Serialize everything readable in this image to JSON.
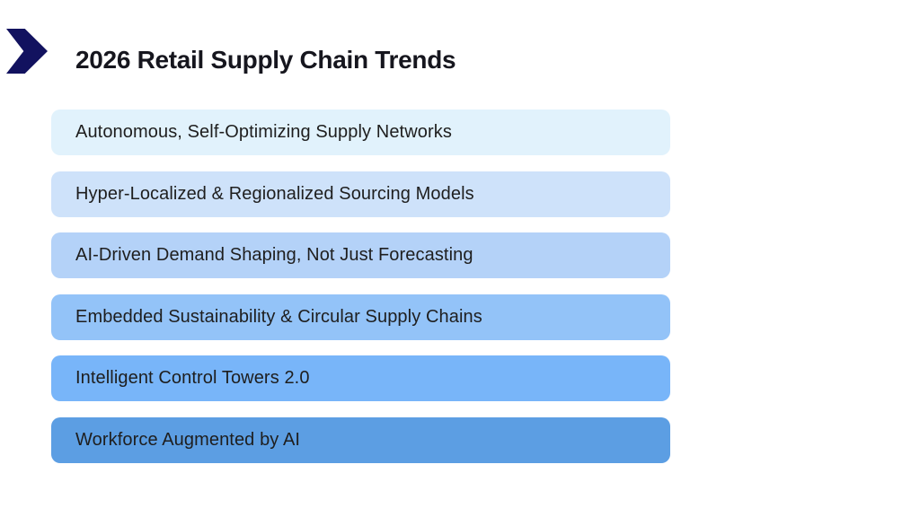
{
  "slide": {
    "title": "2026 Retail Supply Chain Trends",
    "items": [
      {
        "label": "Autonomous, Self-Optimizing Supply Networks",
        "bg_color": "#e1f2fc"
      },
      {
        "label": "Hyper-Localized & Regionalized Sourcing Models",
        "bg_color": "#cee2fa"
      },
      {
        "label": "AI-Driven Demand Shaping, Not Just Forecasting",
        "bg_color": "#b4d2f8"
      },
      {
        "label": "Embedded Sustainability & Circular Supply Chains",
        "bg_color": "#93c3f8"
      },
      {
        "label": "Intelligent Control Towers 2.0",
        "bg_color": "#78b5f9"
      },
      {
        "label": "Workforce Augmented by AI",
        "bg_color": "#5c9ee3"
      }
    ],
    "icons": {
      "header_icon": "chevron-right-icon"
    },
    "colors": {
      "background": "#ffffff",
      "chevron": "#12125f",
      "title_text": "#16161e",
      "item_text": "#1e1e1e"
    }
  }
}
